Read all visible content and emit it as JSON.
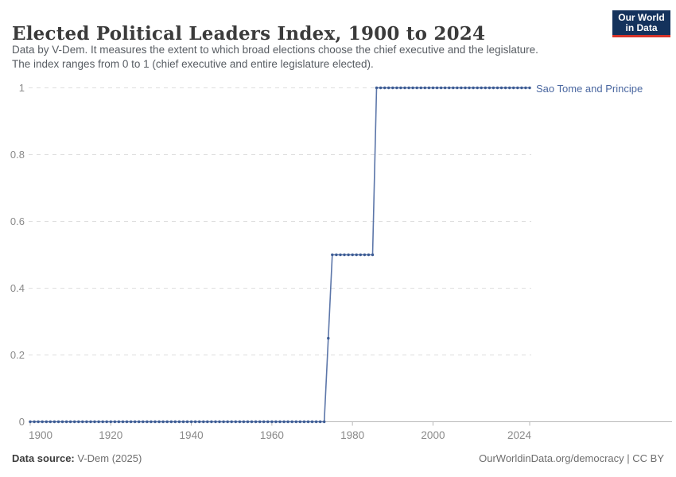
{
  "header": {
    "title": "Elected Political Leaders Index, 1900 to 2024",
    "subtitle_line1": "Data by V-Dem. It measures the extent to which broad elections choose the chief executive and the legislature.",
    "subtitle_line2": "The index ranges from 0 to 1 (chief executive and entire legislature elected).",
    "logo": {
      "line1": "Our World",
      "line2": "in Data",
      "bg_color": "#14325c",
      "accent_color": "#d7342a"
    }
  },
  "chart_data": {
    "type": "line",
    "style": "yearly line with point markers (step-like)",
    "title": "Elected Political Leaders Index, 1900 to 2024",
    "entity": "Sao Tome and Principe",
    "xlabel": "",
    "ylabel": "",
    "xlim": [
      1900,
      2024
    ],
    "ylim": [
      0,
      1
    ],
    "x_ticks": [
      1900,
      1920,
      1940,
      1960,
      1980,
      2000,
      2024
    ],
    "y_ticks": [
      0,
      0.2,
      0.4,
      0.6,
      0.8,
      1
    ],
    "grid": "horizontal dashed gridlines, no vertical gridlines",
    "legend_position": "right of last point (entity label)",
    "segments": [
      {
        "from": 1900,
        "to": 1973,
        "value": 0
      },
      {
        "from": 1974,
        "to": 1974,
        "value": 0.25
      },
      {
        "from": 1975,
        "to": 1985,
        "value": 0.5
      },
      {
        "from": 1986,
        "to": 2024,
        "value": 1
      }
    ],
    "line_color": "#4a67a0",
    "marker_color": "#3d5c94",
    "entity_label_color": "#4a67a0",
    "gridline_color": "#dedede",
    "axis_color": "#b9b9b9",
    "tick_label_color": "#8a8a8a"
  },
  "footer": {
    "source_label": "Data source:",
    "source_value": " V-Dem (2025)",
    "right_text": "OurWorldinData.org/democracy | CC BY"
  }
}
